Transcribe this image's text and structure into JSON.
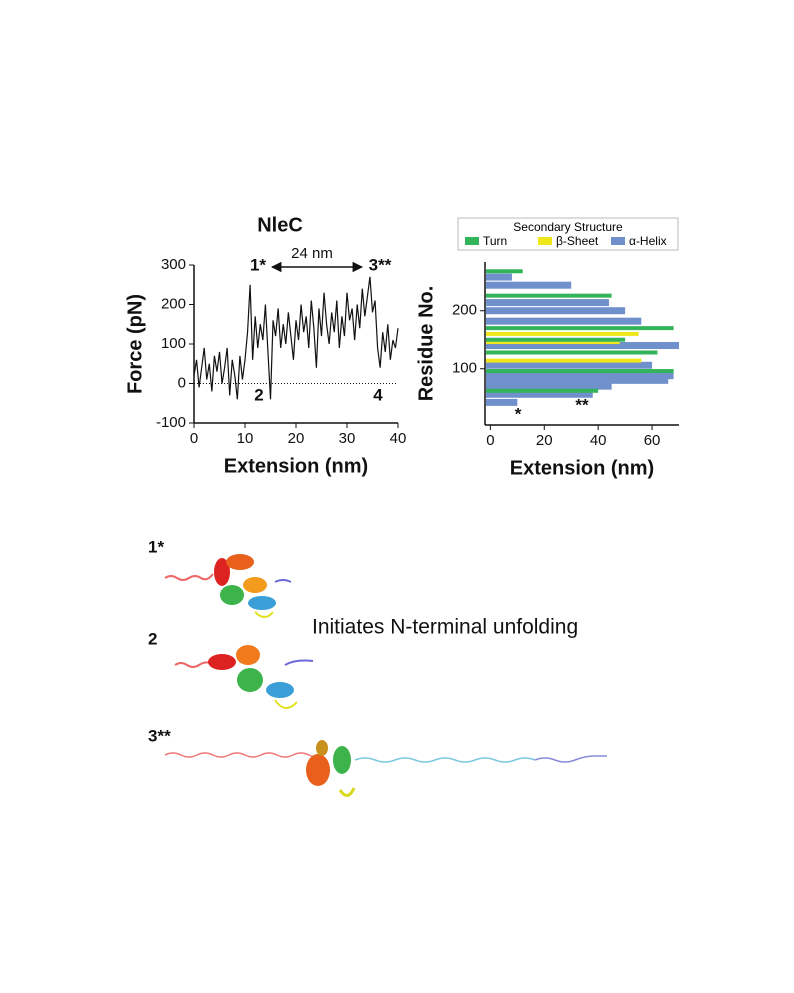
{
  "chart_data": [
    {
      "type": "line",
      "title": "NleC",
      "xlabel": "Extension (nm)",
      "ylabel": "Force (pN)",
      "xlim": [
        0,
        40
      ],
      "ylim": [
        -100,
        300
      ],
      "xticks": [
        0,
        10,
        20,
        30,
        40
      ],
      "yticks": [
        -100,
        0,
        100,
        200,
        300
      ],
      "color": "#111111",
      "x": [
        0,
        0.5,
        1,
        1.5,
        2,
        2.5,
        3,
        3.5,
        4,
        4.5,
        5,
        5.5,
        6,
        6.5,
        7,
        7.5,
        8,
        8.5,
        9,
        9.5,
        10,
        10.5,
        11,
        11.5,
        12,
        12.5,
        13,
        13.5,
        14,
        14.5,
        15,
        15.5,
        16,
        16.5,
        17,
        17.5,
        18,
        18.5,
        19,
        19.5,
        20,
        20.5,
        21,
        21.5,
        22,
        22.5,
        23,
        23.5,
        24,
        24.5,
        25,
        25.5,
        26,
        26.5,
        27,
        27.5,
        28,
        28.5,
        29,
        29.5,
        30,
        30.5,
        31,
        31.5,
        32,
        32.5,
        33,
        33.5,
        34,
        34.5,
        35,
        35.5,
        36,
        36.5,
        37,
        37.5,
        38,
        38.5,
        39,
        39.5,
        40
      ],
      "values": [
        20,
        60,
        -10,
        40,
        90,
        10,
        50,
        -20,
        70,
        30,
        80,
        0,
        40,
        90,
        -30,
        60,
        20,
        -40,
        70,
        10,
        60,
        130,
        250,
        60,
        170,
        90,
        150,
        110,
        200,
        80,
        -40,
        160,
        120,
        190,
        90,
        150,
        100,
        180,
        120,
        60,
        160,
        110,
        200,
        130,
        170,
        90,
        210,
        140,
        40,
        190,
        120,
        230,
        150,
        100,
        180,
        130,
        210,
        90,
        170,
        120,
        230,
        160,
        190,
        110,
        200,
        140,
        240,
        170,
        220,
        270,
        180,
        210,
        90,
        40,
        130,
        80,
        150,
        60,
        110,
        90,
        140
      ],
      "annotations": [
        "1*",
        "2",
        "3**",
        "4",
        "24 nm"
      ]
    },
    {
      "type": "hbar",
      "xlabel": "Extension (nm)",
      "ylabel": "Residue No.",
      "legend_title": "Secondary Structure",
      "xlim": [
        -2,
        70
      ],
      "ylim": [
        3,
        284
      ],
      "xticks": [
        0,
        20,
        40,
        60
      ],
      "yticks": [
        100,
        200
      ],
      "series": [
        {
          "name": "Turn",
          "color": "#33b35a",
          "y": [
            268,
            226,
            170,
            150,
            128,
            96,
            62
          ],
          "values": [
            12,
            45,
            68,
            50,
            62,
            68,
            40
          ]
        },
        {
          "name": "β-Sheet",
          "color": "#f0e61c",
          "y": [
            160,
            146,
            114
          ],
          "values": [
            55,
            48,
            56
          ]
        },
        {
          "name": "α-Helix",
          "color": "#7090cc",
          "y": [
            258,
            244,
            214,
            200,
            182,
            140,
            106,
            88,
            80,
            70,
            56,
            42
          ],
          "values": [
            8,
            30,
            44,
            50,
            56,
            70,
            60,
            68,
            66,
            45,
            38,
            10
          ]
        }
      ],
      "annotations": [
        "*",
        "**"
      ]
    }
  ],
  "structures": {
    "labels": [
      "1*",
      "2",
      "3**"
    ],
    "caption": "Initiates N-terminal unfolding"
  }
}
